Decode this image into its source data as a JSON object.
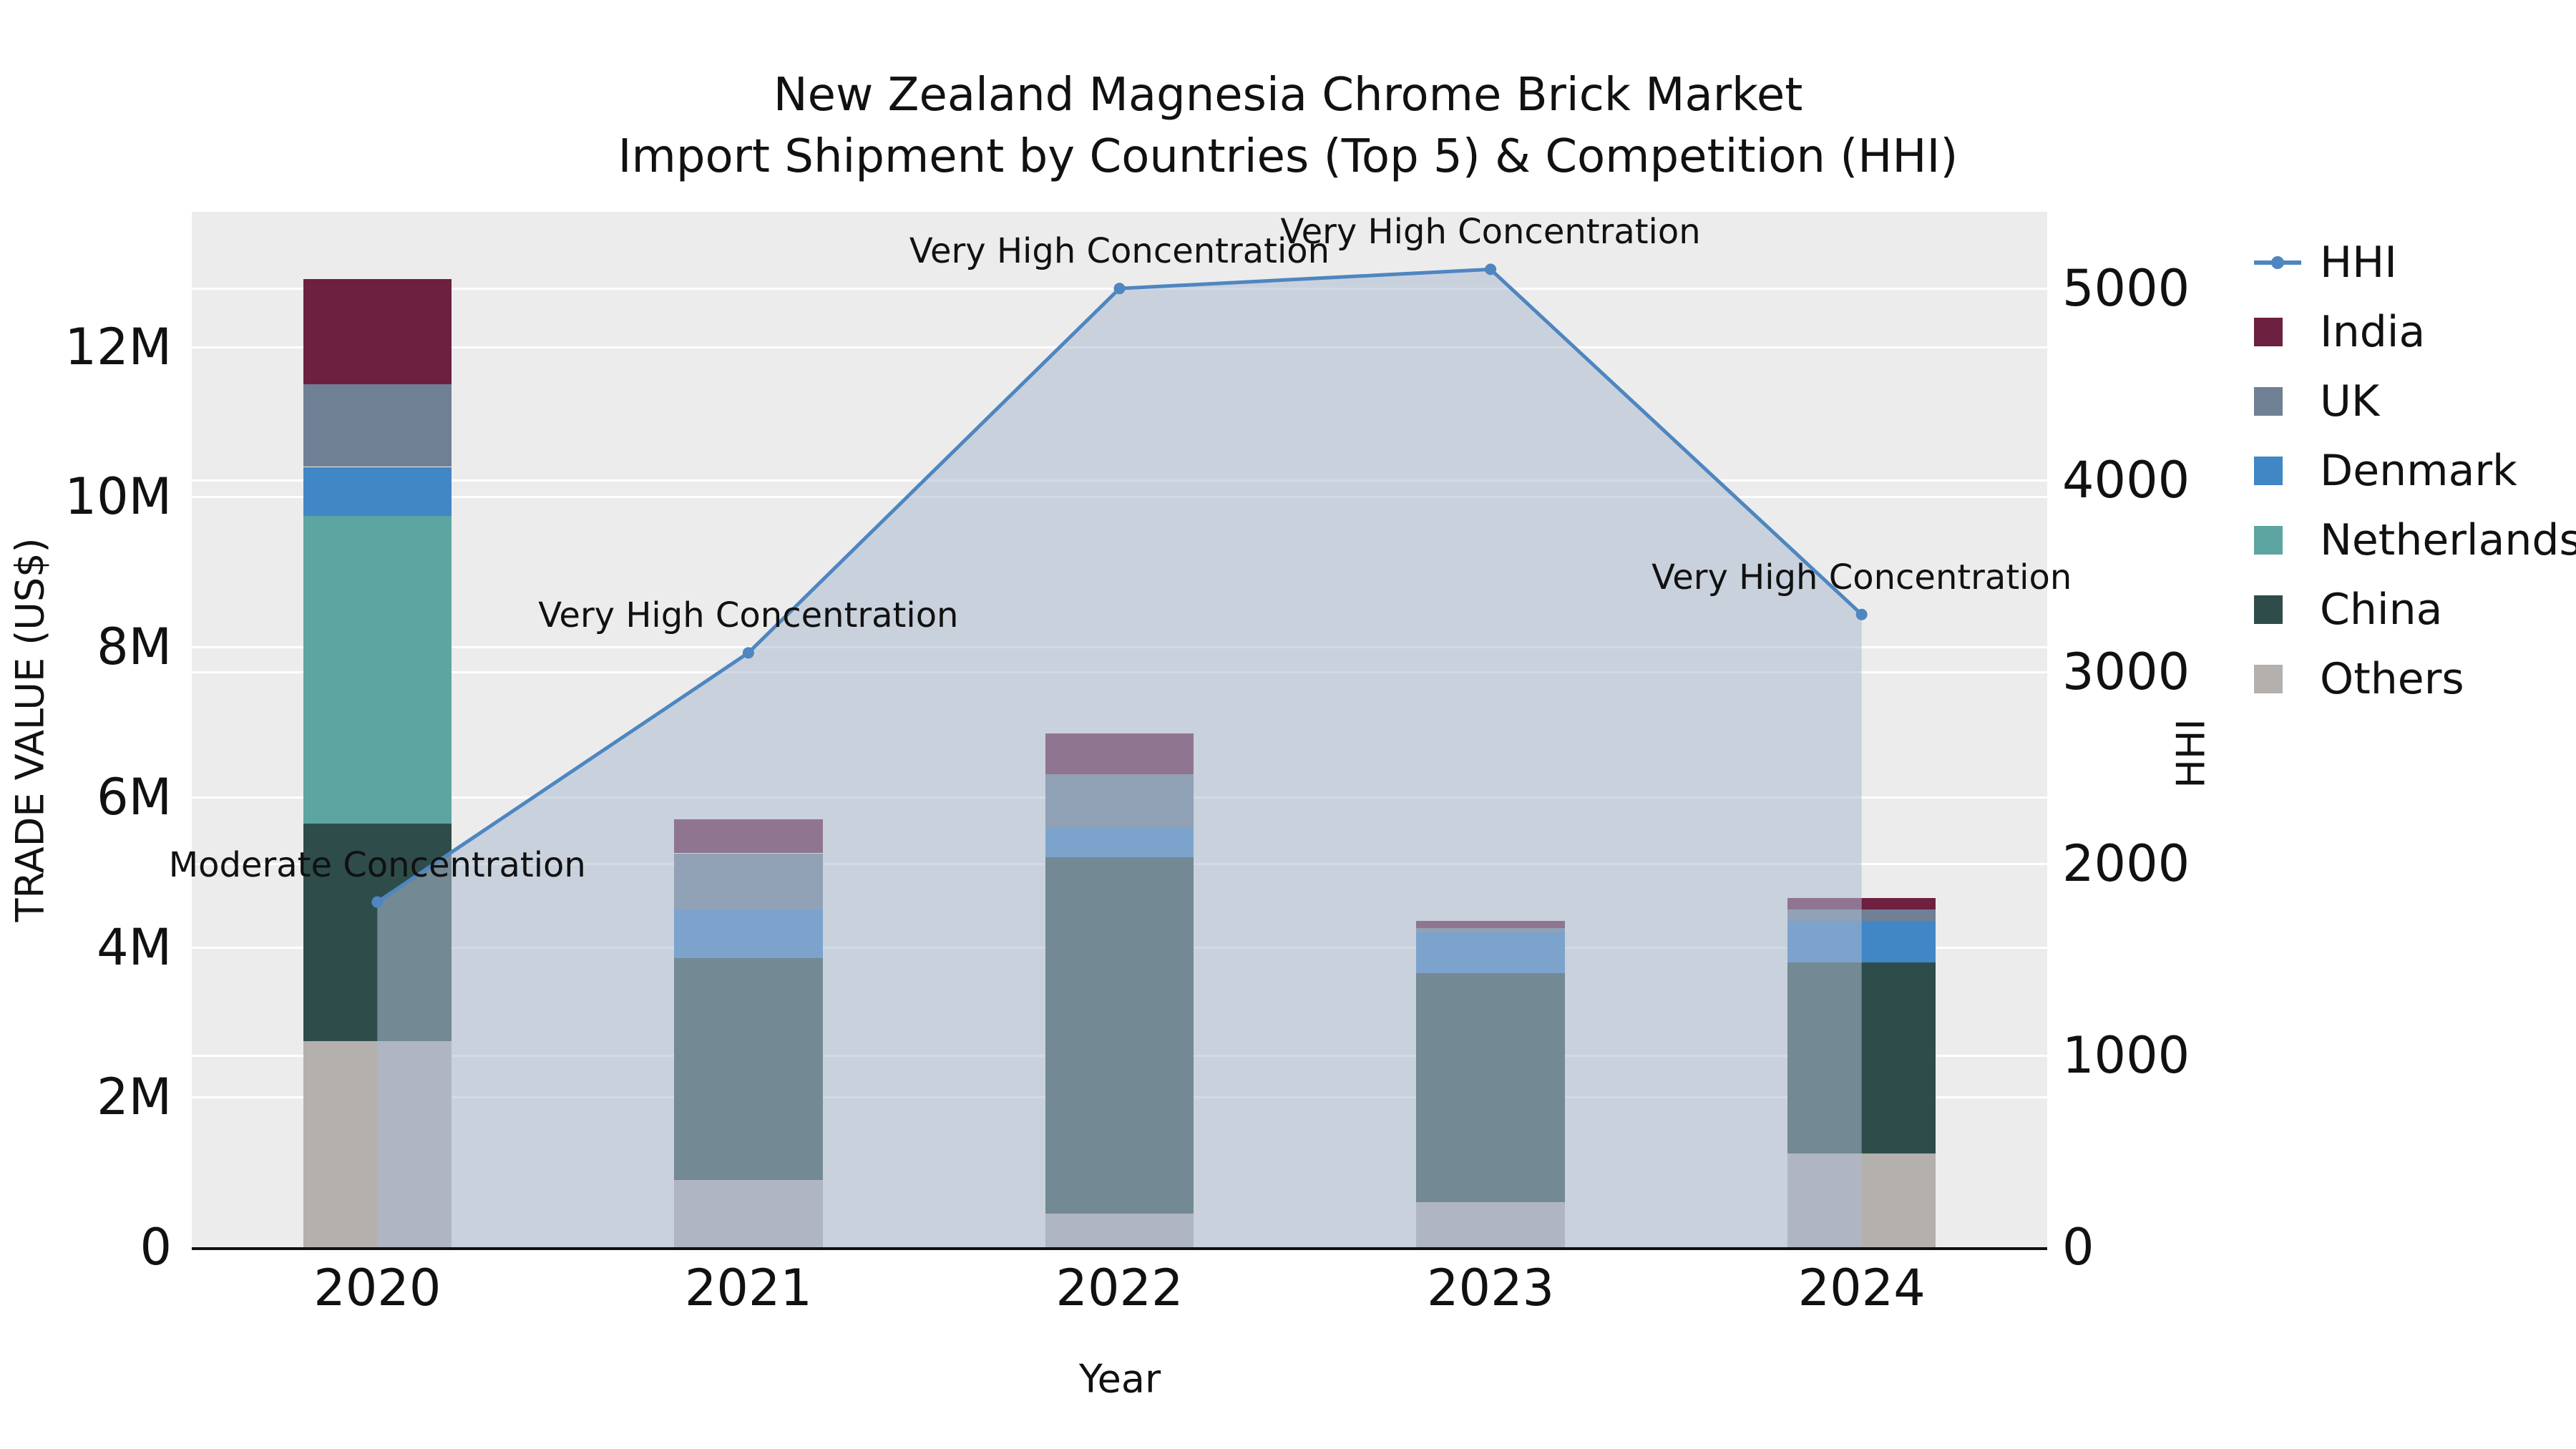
{
  "chart_data": {
    "type": "combo-stacked-bar-line",
    "title": "New Zealand Magnesia Chrome Brick Market",
    "subtitle": "Import Shipment by Countries (Top 5) & Competition (HHI)",
    "xlabel": "Year",
    "ylabel": "TRADE VALUE (US$)",
    "y2label": "HHI",
    "categories": [
      "2020",
      "2021",
      "2022",
      "2023",
      "2024"
    ],
    "bar_width_frac": 0.08,
    "bar_series": [
      {
        "name": "Others",
        "color": "#b4b0ad",
        "values": [
          2750000,
          900000,
          450000,
          600000,
          1250000
        ]
      },
      {
        "name": "China",
        "color": "#2e4d4a",
        "values": [
          2900000,
          2950000,
          4750000,
          3050000,
          2550000
        ]
      },
      {
        "name": "Netherlands",
        "color": "#5ca5a1",
        "values": [
          4100000,
          0,
          0,
          0,
          0
        ]
      },
      {
        "name": "Denmark",
        "color": "#4186c5",
        "values": [
          650000,
          650000,
          400000,
          550000,
          550000
        ]
      },
      {
        "name": "UK",
        "color": "#6f8094",
        "values": [
          1100000,
          750000,
          700000,
          50000,
          150000
        ]
      },
      {
        "name": "India",
        "color": "#6e2040",
        "values": [
          1400000,
          450000,
          550000,
          100000,
          150000
        ]
      }
    ],
    "line_series": {
      "name": "HHI",
      "color": "#4e86c0",
      "fill_color": "rgba(173,188,209,0.55)",
      "values": [
        1800,
        3100,
        5000,
        5100,
        3300
      ]
    },
    "annotations": [
      "Moderate Concentration",
      "Very High Concentration",
      "Very High Concentration",
      "Very High Concentration",
      "Very High Concentration"
    ],
    "y_axis": {
      "max": 13800000,
      "ticks": [
        {
          "label": "0",
          "value": 0
        },
        {
          "label": "2M",
          "value": 2000000
        },
        {
          "label": "4M",
          "value": 4000000
        },
        {
          "label": "6M",
          "value": 6000000
        },
        {
          "label": "8M",
          "value": 8000000
        },
        {
          "label": "10M",
          "value": 10000000
        },
        {
          "label": "12M",
          "value": 12000000
        }
      ]
    },
    "y2_axis": {
      "max": 5400,
      "ticks": [
        {
          "label": "0",
          "value": 0
        },
        {
          "label": "1000",
          "value": 1000
        },
        {
          "label": "2000",
          "value": 2000
        },
        {
          "label": "3000",
          "value": 3000
        },
        {
          "label": "4000",
          "value": 4000
        },
        {
          "label": "5000",
          "value": 5000
        }
      ]
    },
    "legend": [
      "HHI",
      "India",
      "UK",
      "Denmark",
      "Netherlands",
      "China",
      "Others"
    ],
    "legend_position": "top-right-outside",
    "grid": true,
    "plot_background": "#ececec"
  }
}
